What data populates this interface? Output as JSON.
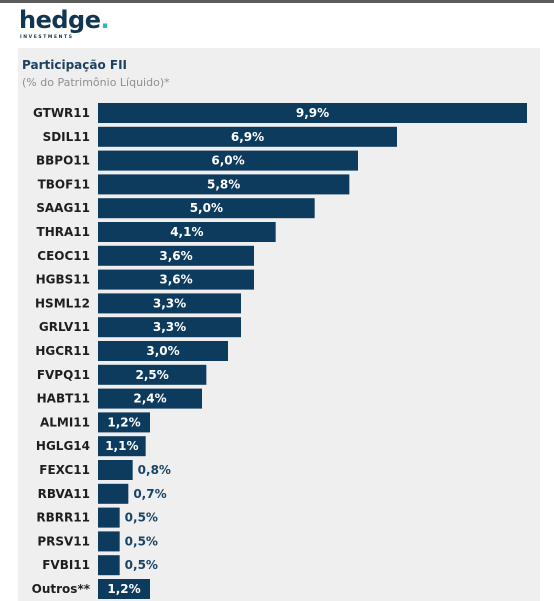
{
  "brand": {
    "name": "hedge",
    "dot": ".",
    "tagline": "INVESTMENTS"
  },
  "colors": {
    "bar": "#0d3b5e",
    "label_inside": "#ffffff",
    "label_outside": "#1a4466",
    "category_text": "#1e1e1e",
    "panel": "#efefef"
  },
  "chart_data": {
    "type": "bar",
    "orientation": "horizontal",
    "title": "Participação FII",
    "subtitle": "(% do Patrimônio Líquido)*",
    "categories": [
      "GTWR11",
      "SDIL11",
      "BBPO11",
      "TBOF11",
      "SAAG11",
      "THRA11",
      "CEOC11",
      "HGBS11",
      "HSML12",
      "GRLV11",
      "HGCR11",
      "FVPQ11",
      "HABT11",
      "ALMI11",
      "HGLG14",
      "FEXC11",
      "RBVA11",
      "RBRR11",
      "PRSV11",
      "FVBI11",
      "Outros**"
    ],
    "values": [
      9.9,
      6.9,
      6.0,
      5.8,
      5.0,
      4.1,
      3.6,
      3.6,
      3.3,
      3.3,
      3.0,
      2.5,
      2.4,
      1.2,
      1.1,
      0.8,
      0.7,
      0.5,
      0.5,
      0.5,
      1.2
    ],
    "value_labels": [
      "9,9%",
      "6,9%",
      "6,0%",
      "5,8%",
      "5,0%",
      "4,1%",
      "3,6%",
      "3,6%",
      "3,3%",
      "3,3%",
      "3,0%",
      "2,5%",
      "2,4%",
      "1,2%",
      "1,1%",
      "0,8%",
      "0,7%",
      "0,5%",
      "0,5%",
      "0,5%",
      "1,2%"
    ],
    "grid": false,
    "legend": "none"
  }
}
